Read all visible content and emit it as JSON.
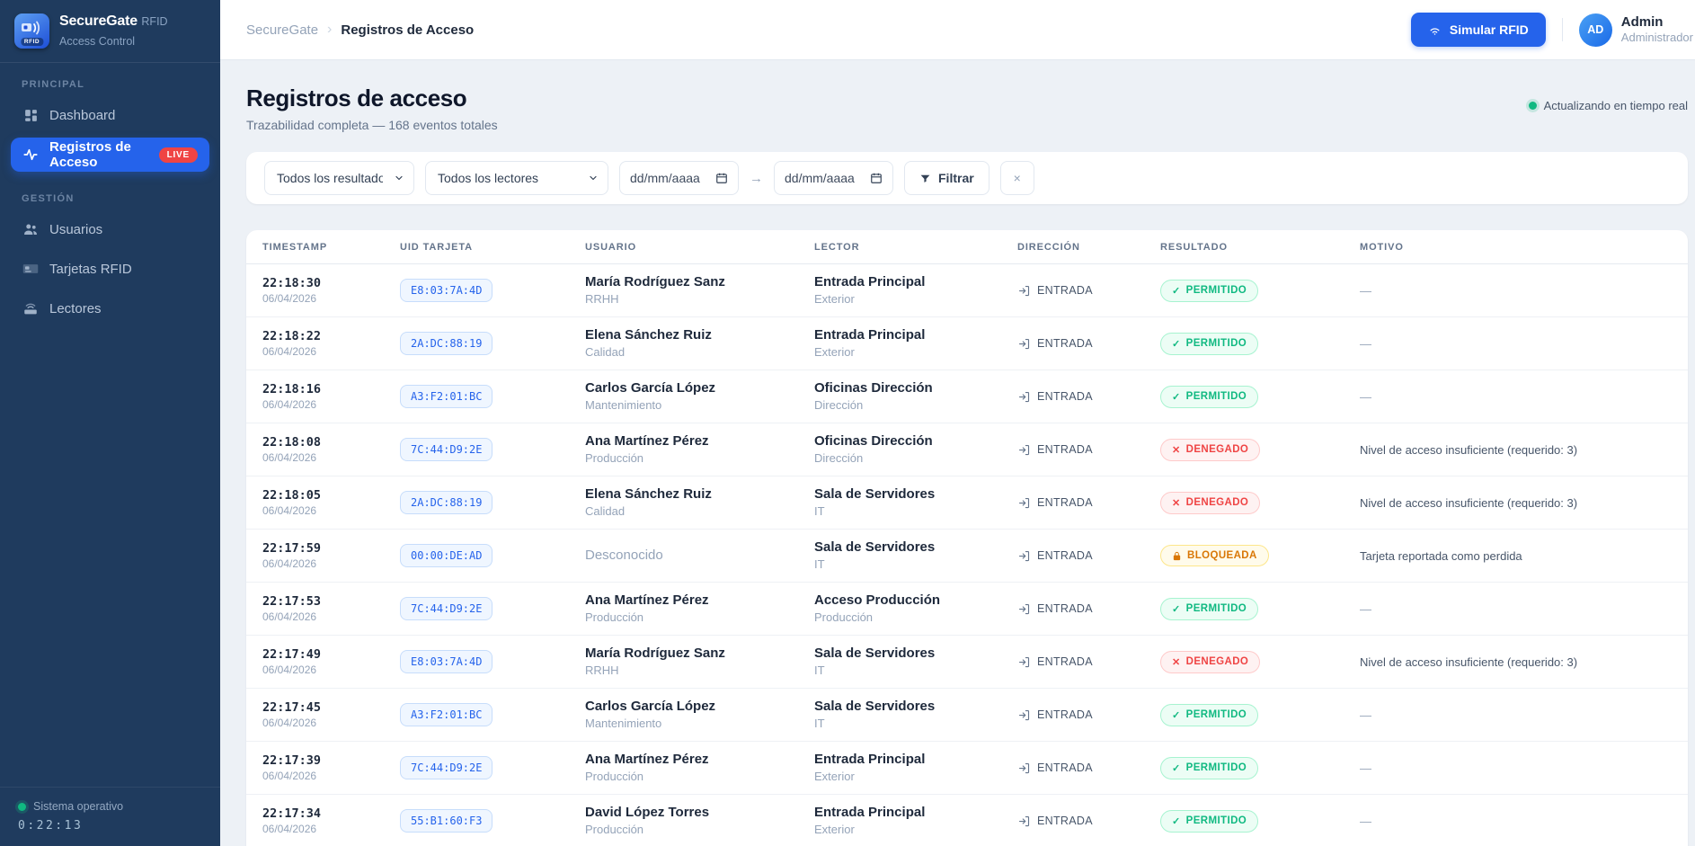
{
  "sidebar": {
    "logo_title": "SecureGate",
    "logo_subtitle": "RFID Access Control",
    "logo_tag": "RFID",
    "sections": [
      {
        "label": "PRINCIPAL",
        "items": [
          {
            "label": "Dashboard"
          },
          {
            "label": "Registros de Acceso",
            "badge": "LIVE",
            "active": true
          }
        ]
      },
      {
        "label": "GESTIÓN",
        "items": [
          {
            "label": "Usuarios"
          },
          {
            "label": "Tarjetas RFID"
          },
          {
            "label": "Lectores"
          }
        ]
      }
    ],
    "footer": {
      "status": "Sistema operativo",
      "uptime": "0:22:13"
    }
  },
  "header": {
    "breadcrumb": [
      "SecureGate",
      "Registros de Acceso"
    ],
    "breadcrumb_separator": "›",
    "simulate_button": "Simular RFID",
    "user": {
      "initials": "AD",
      "name": "Admin",
      "role": "Administrador"
    }
  },
  "page": {
    "title": "Registros de acceso",
    "subtitle": "Trazabilidad completa — 168 eventos totales",
    "total_events": 168,
    "live_status": "Actualizando en tiempo real"
  },
  "filters": {
    "result_select": "Todos los resultados",
    "reader_select": "Todos los lectores",
    "date_from_placeholder": "dd/mm/aaaa",
    "date_to_placeholder": "dd/mm/aaaa",
    "range_arrow": "→",
    "filter_button": "Filtrar",
    "clear_button": "×"
  },
  "table": {
    "columns": [
      "TIMESTAMP",
      "UID TARJETA",
      "USUARIO",
      "LECTOR",
      "DIRECCIÓN",
      "RESULTADO",
      "MOTIVO"
    ],
    "rows": [
      {
        "time": "22:18:30",
        "date": "06/04/2026",
        "uid": "E8:03:7A:4D",
        "user": "María Rodríguez Sanz",
        "dept": "RRHH",
        "reader": "Entrada Principal",
        "zone": "Exterior",
        "direction": "ENTRADA",
        "result": "PERMITIDO",
        "motivo": "—"
      },
      {
        "time": "22:18:22",
        "date": "06/04/2026",
        "uid": "2A:DC:88:19",
        "user": "Elena Sánchez Ruiz",
        "dept": "Calidad",
        "reader": "Entrada Principal",
        "zone": "Exterior",
        "direction": "ENTRADA",
        "result": "PERMITIDO",
        "motivo": "—"
      },
      {
        "time": "22:18:16",
        "date": "06/04/2026",
        "uid": "A3:F2:01:BC",
        "user": "Carlos García López",
        "dept": "Mantenimiento",
        "reader": "Oficinas Dirección",
        "zone": "Dirección",
        "direction": "ENTRADA",
        "result": "PERMITIDO",
        "motivo": "—"
      },
      {
        "time": "22:18:08",
        "date": "06/04/2026",
        "uid": "7C:44:D9:2E",
        "user": "Ana Martínez Pérez",
        "dept": "Producción",
        "reader": "Oficinas Dirección",
        "zone": "Dirección",
        "direction": "ENTRADA",
        "result": "DENEGADO",
        "motivo": "Nivel de acceso insuficiente (requerido: 3)"
      },
      {
        "time": "22:18:05",
        "date": "06/04/2026",
        "uid": "2A:DC:88:19",
        "user": "Elena Sánchez Ruiz",
        "dept": "Calidad",
        "reader": "Sala de Servidores",
        "zone": "IT",
        "direction": "ENTRADA",
        "result": "DENEGADO",
        "motivo": "Nivel de acceso insuficiente (requerido: 3)"
      },
      {
        "time": "22:17:59",
        "date": "06/04/2026",
        "uid": "00:00:DE:AD",
        "user": "Desconocido",
        "dept": "",
        "reader": "Sala de Servidores",
        "zone": "IT",
        "direction": "ENTRADA",
        "result": "BLOQUEADA",
        "motivo": "Tarjeta reportada como perdida"
      },
      {
        "time": "22:17:53",
        "date": "06/04/2026",
        "uid": "7C:44:D9:2E",
        "user": "Ana Martínez Pérez",
        "dept": "Producción",
        "reader": "Acceso Producción",
        "zone": "Producción",
        "direction": "ENTRADA",
        "result": "PERMITIDO",
        "motivo": "—"
      },
      {
        "time": "22:17:49",
        "date": "06/04/2026",
        "uid": "E8:03:7A:4D",
        "user": "María Rodríguez Sanz",
        "dept": "RRHH",
        "reader": "Sala de Servidores",
        "zone": "IT",
        "direction": "ENTRADA",
        "result": "DENEGADO",
        "motivo": "Nivel de acceso insuficiente (requerido: 3)"
      },
      {
        "time": "22:17:45",
        "date": "06/04/2026",
        "uid": "A3:F2:01:BC",
        "user": "Carlos García López",
        "dept": "Mantenimiento",
        "reader": "Sala de Servidores",
        "zone": "IT",
        "direction": "ENTRADA",
        "result": "PERMITIDO",
        "motivo": "—"
      },
      {
        "time": "22:17:39",
        "date": "06/04/2026",
        "uid": "7C:44:D9:2E",
        "user": "Ana Martínez Pérez",
        "dept": "Producción",
        "reader": "Entrada Principal",
        "zone": "Exterior",
        "direction": "ENTRADA",
        "result": "PERMITIDO",
        "motivo": "—"
      },
      {
        "time": "22:17:34",
        "date": "06/04/2026",
        "uid": "55:B1:60:F3",
        "user": "David López Torres",
        "dept": "Producción",
        "reader": "Entrada Principal",
        "zone": "Exterior",
        "direction": "ENTRADA",
        "result": "PERMITIDO",
        "motivo": "—"
      }
    ]
  },
  "colors": {
    "sidebar_bg": "#1f3b5e",
    "accent_blue": "#2563eb",
    "success_green": "#10b981",
    "danger_red": "#ef4444",
    "warning_amber": "#d97706",
    "live_red": "#ef4444",
    "content_bg": "#edf1f6"
  }
}
